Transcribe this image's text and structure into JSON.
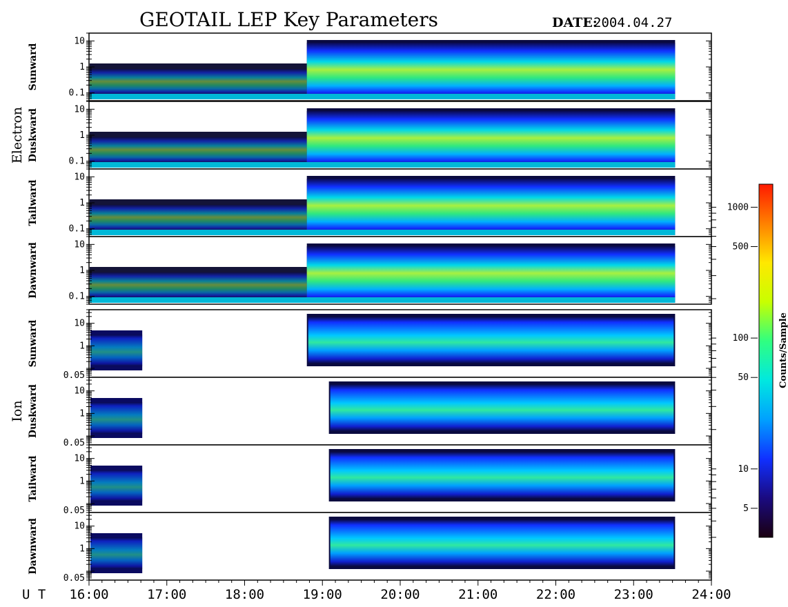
{
  "header": {
    "title": "GEOTAIL LEP Key Parameters",
    "date_label": "DATE:",
    "date_value": "2004.04.27"
  },
  "groups": [
    {
      "label": "Electron"
    },
    {
      "label": "Ion"
    }
  ],
  "colorbar": {
    "label": "Counts/Sample",
    "scale": "log",
    "range": [
      3,
      1500
    ],
    "ticks": [
      {
        "value": 1000,
        "label": "1000"
      },
      {
        "value": 500,
        "label": "500"
      },
      {
        "value": 100,
        "label": "100"
      },
      {
        "value": 50,
        "label": "50"
      },
      {
        "value": 10,
        "label": "10"
      },
      {
        "value": 5,
        "label": "5"
      }
    ],
    "colors": [
      "#1a0010",
      "#1a0a80",
      "#1030ff",
      "#00a0ff",
      "#00e8e0",
      "#30ff80",
      "#c8ff00",
      "#ffe800",
      "#ff8000",
      "#ff1a00"
    ]
  },
  "chart_data": {
    "type": "heatmap",
    "x_axis": {
      "label": "U T",
      "range": [
        "16:00",
        "24:00"
      ],
      "ticks": [
        "16:00",
        "17:00",
        "18:00",
        "19:00",
        "20:00",
        "21:00",
        "22:00",
        "23:00",
        "24:00"
      ],
      "data_end": "23:32"
    },
    "panels": [
      {
        "group": "Electron",
        "direction": "Sunward",
        "yscale": "log",
        "ylim": [
          0.05,
          20
        ],
        "yticks": [
          {
            "value": 10,
            "label": "10"
          },
          {
            "value": 1,
            "label": "1"
          },
          {
            "value": 0.1,
            "label": "0.1"
          }
        ]
      },
      {
        "group": "Electron",
        "direction": "Duskward",
        "yscale": "log",
        "ylim": [
          0.05,
          20
        ],
        "yticks": [
          {
            "value": 10,
            "label": "10"
          },
          {
            "value": 1,
            "label": "1"
          },
          {
            "value": 0.1,
            "label": "0.1"
          }
        ]
      },
      {
        "group": "Electron",
        "direction": "Tailward",
        "yscale": "log",
        "ylim": [
          0.05,
          20
        ],
        "yticks": [
          {
            "value": 10,
            "label": "10"
          },
          {
            "value": 1,
            "label": "1"
          },
          {
            "value": 0.1,
            "label": "0.1"
          }
        ]
      },
      {
        "group": "Electron",
        "direction": "Dawnward",
        "yscale": "log",
        "ylim": [
          0.05,
          20
        ],
        "yticks": [
          {
            "value": 10,
            "label": "10"
          },
          {
            "value": 1,
            "label": "1"
          },
          {
            "value": 0.1,
            "label": "0.1"
          }
        ]
      },
      {
        "group": "Ion",
        "direction": "Sunward",
        "yscale": "log",
        "ylim": [
          0.04,
          40
        ],
        "yticks": [
          {
            "value": 10,
            "label": "10"
          },
          {
            "value": 1,
            "label": "1"
          },
          {
            "value": 0.05,
            "label": "0.05"
          }
        ]
      },
      {
        "group": "Ion",
        "direction": "Duskward",
        "yscale": "log",
        "ylim": [
          0.04,
          40
        ],
        "yticks": [
          {
            "value": 10,
            "label": "10"
          },
          {
            "value": 1,
            "label": "1"
          },
          {
            "value": 0.05,
            "label": "0.05"
          }
        ]
      },
      {
        "group": "Ion",
        "direction": "Tailward",
        "yscale": "log",
        "ylim": [
          0.04,
          40
        ],
        "yticks": [
          {
            "value": 10,
            "label": "10"
          },
          {
            "value": 1,
            "label": "1"
          },
          {
            "value": 0.05,
            "label": "0.05"
          }
        ]
      },
      {
        "group": "Ion",
        "direction": "Dawnward",
        "yscale": "log",
        "ylim": [
          0.04,
          40
        ],
        "yticks": [
          {
            "value": 10,
            "label": "10"
          },
          {
            "value": 1,
            "label": "1"
          },
          {
            "value": 0.05,
            "label": "0.05"
          }
        ]
      }
    ]
  }
}
